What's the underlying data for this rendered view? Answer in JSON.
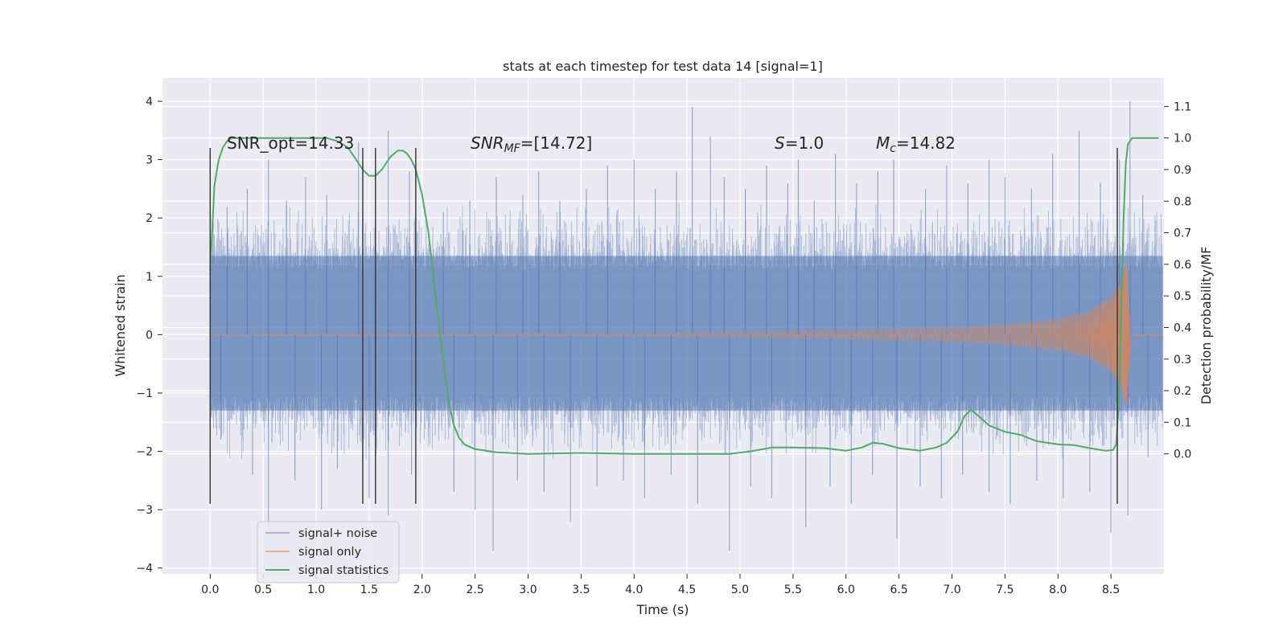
{
  "chart_data": {
    "type": "line",
    "title": "stats at each timestep for test data 14 [signal=1]",
    "xlabel": "Time (s)",
    "ylabel": "Whitened strain",
    "ylabel_right": "Detection probability/MF",
    "xlim": [
      -0.45,
      9.0
    ],
    "ylim": [
      -4.1,
      4.4
    ],
    "ylim_right": [
      -0.38,
      1.19
    ],
    "x_ticks": [
      0.0,
      0.5,
      1.0,
      1.5,
      2.0,
      2.5,
      3.0,
      3.5,
      4.0,
      4.5,
      5.0,
      5.5,
      6.0,
      6.5,
      7.0,
      7.5,
      8.0,
      8.5
    ],
    "x_tick_labels": [
      "0.0",
      "0.5",
      "1.0",
      "1.5",
      "2.0",
      "2.5",
      "3.0",
      "3.5",
      "4.0",
      "4.5",
      "5.0",
      "5.5",
      "6.0",
      "6.5",
      "7.0",
      "7.5",
      "8.0",
      "8.5"
    ],
    "y_ticks": [
      4,
      3,
      2,
      1,
      0,
      -1,
      -2,
      -3,
      -4
    ],
    "y_tick_labels": [
      "4",
      "3",
      "2",
      "1",
      "0",
      "−1",
      "−2",
      "−3",
      "−4"
    ],
    "y_right_ticks": [
      1.1,
      1.0,
      0.9,
      0.8,
      0.7,
      0.6,
      0.5,
      0.4,
      0.3,
      0.2,
      0.1,
      0.0
    ],
    "y_right_tick_labels": [
      "1.1",
      "1.0",
      "0.9",
      "0.8",
      "0.7",
      "0.6",
      "0.5",
      "0.4",
      "0.3",
      "0.2",
      "0.1",
      "0.0"
    ],
    "grid": true,
    "legend_position": "lower-left",
    "annotations": {
      "snr_opt": "SNR_opt=14.33",
      "snr_mf_main": "SNR",
      "snr_mf_sub": "MF",
      "snr_mf_value": "=[14.72]",
      "s_main": "S",
      "s_value": "=1.0",
      "mc_main": "M",
      "mc_sub": "c",
      "mc_value": "=14.82"
    },
    "markers": {
      "description_times": [
        0.0,
        1.44,
        1.56,
        1.94,
        8.56
      ],
      "y_top": 3.2,
      "y_bottom": -2.9
    },
    "data_span": {
      "t_start": 0.0,
      "t_end": 8.99
    },
    "series": [
      {
        "name": "signal+ noise",
        "axis": "left",
        "color": "#4c72b0",
        "envelope": {
          "t": [
            0.0,
            9.0
          ],
          "hi": [
            1.35,
            1.35
          ],
          "lo": [
            -1.3,
            -1.3
          ]
        },
        "spikes": [
          {
            "t": 0.16,
            "v": 2.2
          },
          {
            "t": 0.35,
            "v": 2.5
          },
          {
            "t": 0.55,
            "v": 3.0
          },
          {
            "t": 0.72,
            "v": 2.3
          },
          {
            "t": 0.9,
            "v": 2.7
          },
          {
            "t": 1.1,
            "v": 2.4
          },
          {
            "t": 1.4,
            "v": 3.3
          },
          {
            "t": 1.68,
            "v": 3.5
          },
          {
            "t": 1.88,
            "v": 2.8
          },
          {
            "t": 2.2,
            "v": 2.1
          },
          {
            "t": 2.45,
            "v": 2.3
          },
          {
            "t": 2.7,
            "v": 2.7
          },
          {
            "t": 2.95,
            "v": 2.4
          },
          {
            "t": 3.1,
            "v": 2.8
          },
          {
            "t": 3.3,
            "v": 2.3
          },
          {
            "t": 3.55,
            "v": 2.5
          },
          {
            "t": 3.75,
            "v": 2.9
          },
          {
            "t": 4.0,
            "v": 3.0
          },
          {
            "t": 4.2,
            "v": 2.5
          },
          {
            "t": 4.4,
            "v": 2.8
          },
          {
            "t": 4.55,
            "v": 3.9
          },
          {
            "t": 4.72,
            "v": 3.4
          },
          {
            "t": 4.85,
            "v": 2.7
          },
          {
            "t": 5.05,
            "v": 2.5
          },
          {
            "t": 5.25,
            "v": 2.9
          },
          {
            "t": 5.45,
            "v": 2.6
          },
          {
            "t": 5.55,
            "v": 3.0
          },
          {
            "t": 5.7,
            "v": 2.3
          },
          {
            "t": 5.9,
            "v": 3.1
          },
          {
            "t": 6.1,
            "v": 2.6
          },
          {
            "t": 6.3,
            "v": 2.8
          },
          {
            "t": 6.45,
            "v": 3.0
          },
          {
            "t": 6.75,
            "v": 2.5
          },
          {
            "t": 6.95,
            "v": 2.9
          },
          {
            "t": 7.15,
            "v": 2.6
          },
          {
            "t": 7.35,
            "v": 3.0
          },
          {
            "t": 7.5,
            "v": 2.7
          },
          {
            "t": 7.75,
            "v": 2.5
          },
          {
            "t": 7.95,
            "v": 3.1
          },
          {
            "t": 8.2,
            "v": 3.5
          },
          {
            "t": 8.4,
            "v": 2.6
          },
          {
            "t": 8.58,
            "v": 3.0
          },
          {
            "t": 8.68,
            "v": 4.0
          },
          {
            "t": 8.8,
            "v": 2.4
          },
          {
            "t": 0.1,
            "v": -1.8
          },
          {
            "t": 0.4,
            "v": -2.4
          },
          {
            "t": 0.55,
            "v": -3.3
          },
          {
            "t": 0.8,
            "v": -2.5
          },
          {
            "t": 1.05,
            "v": -3.0
          },
          {
            "t": 1.2,
            "v": -2.3
          },
          {
            "t": 1.5,
            "v": -2.8
          },
          {
            "t": 1.68,
            "v": -3.1
          },
          {
            "t": 1.9,
            "v": -2.4
          },
          {
            "t": 2.3,
            "v": -2.7
          },
          {
            "t": 2.5,
            "v": -3.0
          },
          {
            "t": 2.67,
            "v": -3.7
          },
          {
            "t": 2.9,
            "v": -2.5
          },
          {
            "t": 3.15,
            "v": -2.7
          },
          {
            "t": 3.4,
            "v": -3.2
          },
          {
            "t": 3.65,
            "v": -2.6
          },
          {
            "t": 3.9,
            "v": -2.5
          },
          {
            "t": 4.1,
            "v": -2.8
          },
          {
            "t": 4.35,
            "v": -2.4
          },
          {
            "t": 4.6,
            "v": -2.9
          },
          {
            "t": 4.9,
            "v": -3.7
          },
          {
            "t": 5.1,
            "v": -2.6
          },
          {
            "t": 5.3,
            "v": -2.8
          },
          {
            "t": 5.62,
            "v": -3.3
          },
          {
            "t": 5.85,
            "v": -2.6
          },
          {
            "t": 6.05,
            "v": -2.9
          },
          {
            "t": 6.25,
            "v": -2.4
          },
          {
            "t": 6.48,
            "v": -3.5
          },
          {
            "t": 6.7,
            "v": -2.6
          },
          {
            "t": 6.9,
            "v": -2.8
          },
          {
            "t": 7.1,
            "v": -2.4
          },
          {
            "t": 7.35,
            "v": -2.7
          },
          {
            "t": 7.55,
            "v": -2.9
          },
          {
            "t": 7.8,
            "v": -2.5
          },
          {
            "t": 8.05,
            "v": -2.8
          },
          {
            "t": 8.3,
            "v": -2.7
          },
          {
            "t": 8.5,
            "v": -3.4
          },
          {
            "t": 8.66,
            "v": -3.1
          },
          {
            "t": 8.85,
            "v": -2.1
          }
        ]
      },
      {
        "name": "signal only",
        "axis": "left",
        "color": "#dd8452",
        "amplitude": {
          "t": [
            0.0,
            4.0,
            5.0,
            6.0,
            7.0,
            7.5,
            8.0,
            8.3,
            8.5,
            8.6,
            8.65,
            8.68,
            8.72,
            8.99
          ],
          "a": [
            0.01,
            0.02,
            0.05,
            0.08,
            0.12,
            0.17,
            0.27,
            0.4,
            0.65,
            0.9,
            1.3,
            0.3,
            0.02,
            0.0
          ]
        }
      },
      {
        "name": "signal statistics",
        "axis": "right",
        "color": "#55a868",
        "x": [
          0.0,
          0.04,
          0.08,
          0.12,
          0.16,
          0.2,
          0.3,
          0.5,
          0.8,
          1.0,
          1.1,
          1.2,
          1.3,
          1.38,
          1.44,
          1.5,
          1.56,
          1.62,
          1.7,
          1.77,
          1.82,
          1.86,
          1.9,
          1.94,
          2.0,
          2.06,
          2.1,
          2.14,
          2.18,
          2.22,
          2.26,
          2.3,
          2.35,
          2.4,
          2.5,
          2.7,
          3.0,
          3.5,
          4.0,
          4.5,
          4.9,
          5.1,
          5.3,
          5.5,
          5.8,
          6.0,
          6.15,
          6.25,
          6.35,
          6.5,
          6.7,
          6.85,
          6.95,
          7.05,
          7.12,
          7.18,
          7.25,
          7.35,
          7.5,
          7.65,
          7.8,
          8.0,
          8.15,
          8.3,
          8.45,
          8.52,
          8.55,
          8.58,
          8.6,
          8.62,
          8.64,
          8.66,
          8.7,
          8.8,
          8.95
        ],
        "values": [
          0.58,
          0.85,
          0.93,
          0.97,
          0.99,
          1.0,
          1.0,
          1.0,
          1.0,
          1.0,
          1.0,
          0.99,
          0.97,
          0.93,
          0.9,
          0.88,
          0.88,
          0.9,
          0.94,
          0.96,
          0.96,
          0.95,
          0.93,
          0.9,
          0.82,
          0.7,
          0.58,
          0.46,
          0.35,
          0.24,
          0.15,
          0.09,
          0.05,
          0.03,
          0.015,
          0.005,
          0.0,
          0.003,
          0.0,
          0.0,
          0.0,
          0.008,
          0.02,
          0.02,
          0.018,
          0.01,
          0.02,
          0.035,
          0.032,
          0.018,
          0.01,
          0.02,
          0.035,
          0.07,
          0.12,
          0.14,
          0.12,
          0.09,
          0.07,
          0.06,
          0.04,
          0.03,
          0.028,
          0.018,
          0.01,
          0.012,
          0.03,
          0.2,
          0.5,
          0.75,
          0.92,
          0.98,
          1.0,
          1.0,
          1.0
        ]
      }
    ]
  }
}
